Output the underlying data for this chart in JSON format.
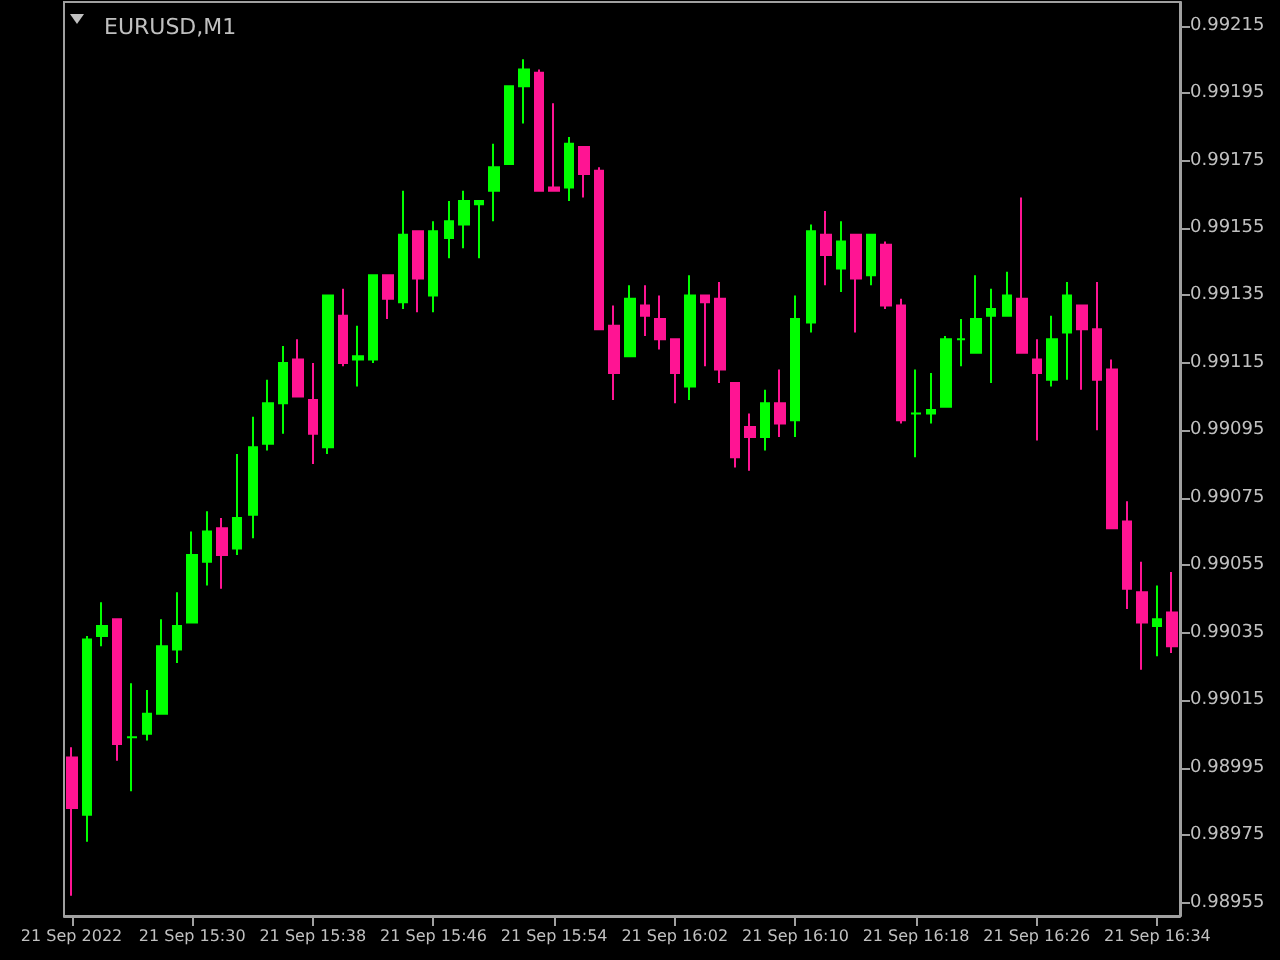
{
  "chart_data": {
    "type": "candlestick",
    "title": "EURUSD,M1",
    "categories": [
      "21 Sep 2022",
      null,
      null,
      null,
      null,
      null,
      null,
      null,
      "21 Sep 15:30",
      null,
      null,
      null,
      null,
      null,
      null,
      null,
      "21 Sep 15:38",
      null,
      null,
      null,
      null,
      null,
      null,
      null,
      "21 Sep 15:46",
      null,
      null,
      null,
      null,
      null,
      null,
      null,
      "21 Sep 15:54",
      null,
      null,
      null,
      null,
      null,
      null,
      null,
      "21 Sep 16:02",
      null,
      null,
      null,
      null,
      null,
      null,
      null,
      "21 Sep 16:10",
      null,
      null,
      null,
      null,
      null,
      null,
      null,
      "21 Sep 16:18",
      null,
      null,
      null,
      null,
      null,
      null,
      null,
      "21 Sep 16:26",
      null,
      null,
      null,
      null,
      null,
      null,
      null,
      "21 Sep 16:34",
      null
    ],
    "ohlc": [
      [
        0.98998,
        0.99001,
        0.98957,
        0.98983
      ],
      [
        0.98981,
        0.99034,
        0.98973,
        0.99033
      ],
      [
        0.99034,
        0.99044,
        0.99031,
        0.99037
      ],
      [
        0.99039,
        0.99039,
        0.98997,
        0.99002
      ],
      [
        0.99004,
        0.9902,
        0.98988,
        0.99004
      ],
      [
        0.99005,
        0.99018,
        0.99003,
        0.99011
      ],
      [
        0.99011,
        0.99039,
        0.99011,
        0.99031
      ],
      [
        0.9903,
        0.99047,
        0.99026,
        0.99037
      ],
      [
        0.99038,
        0.99065,
        0.99038,
        0.99058
      ],
      [
        0.99056,
        0.99071,
        0.99049,
        0.99065
      ],
      [
        0.99066,
        0.99069,
        0.99048,
        0.99058
      ],
      [
        0.9906,
        0.99088,
        0.99058,
        0.99069
      ],
      [
        0.9907,
        0.99099,
        0.99063,
        0.9909
      ],
      [
        0.99091,
        0.9911,
        0.99089,
        0.99103
      ],
      [
        0.99103,
        0.9912,
        0.99094,
        0.99115
      ],
      [
        0.99116,
        0.99122,
        0.99105,
        0.99105
      ],
      [
        0.99104,
        0.99115,
        0.99085,
        0.99094
      ],
      [
        0.9909,
        0.99135,
        0.99088,
        0.99135
      ],
      [
        0.99129,
        0.99137,
        0.99114,
        0.99115
      ],
      [
        0.99116,
        0.99126,
        0.99108,
        0.99117
      ],
      [
        0.99116,
        0.99141,
        0.99115,
        0.99141
      ],
      [
        0.99141,
        0.99141,
        0.99128,
        0.99134
      ],
      [
        0.99133,
        0.99166,
        0.99131,
        0.99153
      ],
      [
        0.99154,
        0.99154,
        0.9913,
        0.9914
      ],
      [
        0.99135,
        0.99157,
        0.9913,
        0.99154
      ],
      [
        0.99152,
        0.99163,
        0.99146,
        0.99157
      ],
      [
        0.99156,
        0.99166,
        0.99149,
        0.99163
      ],
      [
        0.99162,
        0.99163,
        0.99146,
        0.99163
      ],
      [
        0.99166,
        0.9918,
        0.99157,
        0.99173
      ],
      [
        0.99174,
        0.99197,
        0.99174,
        0.99197
      ],
      [
        0.99197,
        0.99205,
        0.99186,
        0.99202
      ],
      [
        0.99201,
        0.99202,
        0.99166,
        0.99166
      ],
      [
        0.99167,
        0.99192,
        0.99166,
        0.99166
      ],
      [
        0.99167,
        0.99182,
        0.99163,
        0.9918
      ],
      [
        0.99179,
        0.99179,
        0.99164,
        0.99171
      ],
      [
        0.99172,
        0.99173,
        0.99125,
        0.99125
      ],
      [
        0.99126,
        0.99132,
        0.99104,
        0.99112
      ],
      [
        0.99117,
        0.99138,
        0.99117,
        0.99134
      ],
      [
        0.99132,
        0.99138,
        0.99123,
        0.99129
      ],
      [
        0.99128,
        0.99135,
        0.99119,
        0.99122
      ],
      [
        0.99122,
        0.99122,
        0.99103,
        0.99112
      ],
      [
        0.99108,
        0.99141,
        0.99104,
        0.99135
      ],
      [
        0.99135,
        0.99135,
        0.99114,
        0.99133
      ],
      [
        0.99134,
        0.99139,
        0.99109,
        0.99113
      ],
      [
        0.99109,
        0.99109,
        0.99084,
        0.99087
      ],
      [
        0.99096,
        0.991,
        0.99083,
        0.99093
      ],
      [
        0.99093,
        0.99107,
        0.99089,
        0.99103
      ],
      [
        0.99103,
        0.99113,
        0.99093,
        0.99097
      ],
      [
        0.99098,
        0.99135,
        0.99093,
        0.99128
      ],
      [
        0.99127,
        0.99156,
        0.99124,
        0.99154
      ],
      [
        0.99153,
        0.9916,
        0.99138,
        0.99147
      ],
      [
        0.99143,
        0.99157,
        0.99136,
        0.99151
      ],
      [
        0.99153,
        0.99153,
        0.99124,
        0.9914
      ],
      [
        0.99141,
        0.99153,
        0.99138,
        0.99153
      ],
      [
        0.9915,
        0.99151,
        0.99131,
        0.99132
      ],
      [
        0.99132,
        0.99134,
        0.99097,
        0.99098
      ],
      [
        0.991,
        0.99113,
        0.99087,
        0.991
      ],
      [
        0.991,
        0.99112,
        0.99097,
        0.99101
      ],
      [
        0.99102,
        0.99123,
        0.99102,
        0.99122
      ],
      [
        0.99122,
        0.99128,
        0.99114,
        0.99122
      ],
      [
        0.99118,
        0.99141,
        0.99118,
        0.99128
      ],
      [
        0.99129,
        0.99137,
        0.99109,
        0.99131
      ],
      [
        0.99129,
        0.99142,
        0.99129,
        0.99135
      ],
      [
        0.99134,
        0.99164,
        0.99118,
        0.99118
      ],
      [
        0.99116,
        0.99122,
        0.99092,
        0.99112
      ],
      [
        0.9911,
        0.99129,
        0.99108,
        0.99122
      ],
      [
        0.99124,
        0.99139,
        0.9911,
        0.99135
      ],
      [
        0.99132,
        0.99132,
        0.99107,
        0.99125
      ],
      [
        0.99125,
        0.99139,
        0.99095,
        0.9911
      ],
      [
        0.99113,
        0.99116,
        0.99066,
        0.99066
      ],
      [
        0.99068,
        0.99074,
        0.99042,
        0.99048
      ],
      [
        0.99047,
        0.99056,
        0.99024,
        0.99038
      ],
      [
        0.99037,
        0.99049,
        0.99028,
        0.99039
      ],
      [
        0.99041,
        0.99053,
        0.99029,
        0.99031
      ]
    ],
    "colors": [
      "#ff1493",
      "#00ff00",
      "#00ff00",
      "#ff1493",
      "#00ff00",
      "#00ff00",
      "#00ff00",
      "#00ff00",
      "#00ff00",
      "#00ff00",
      "#ff1493",
      "#00ff00",
      "#00ff00",
      "#00ff00",
      "#00ff00",
      "#ff1493",
      "#ff1493",
      "#00ff00",
      "#ff1493",
      "#00ff00",
      "#00ff00",
      "#ff1493",
      "#00ff00",
      "#ff1493",
      "#00ff00",
      "#00ff00",
      "#00ff00",
      "#00ff00",
      "#00ff00",
      "#00ff00",
      "#00ff00",
      "#ff1493",
      "#ff1493",
      "#00ff00",
      "#ff1493",
      "#ff1493",
      "#ff1493",
      "#00ff00",
      "#ff1493",
      "#ff1493",
      "#ff1493",
      "#00ff00",
      "#ff1493",
      "#ff1493",
      "#ff1493",
      "#ff1493",
      "#00ff00",
      "#ff1493",
      "#00ff00",
      "#00ff00",
      "#ff1493",
      "#00ff00",
      "#ff1493",
      "#00ff00",
      "#ff1493",
      "#ff1493",
      "#00ff00",
      "#00ff00",
      "#00ff00",
      "#00ff00",
      "#00ff00",
      "#00ff00",
      "#00ff00",
      "#ff1493",
      "#ff1493",
      "#00ff00",
      "#00ff00",
      "#ff1493",
      "#ff1493",
      "#ff1493",
      "#ff1493",
      "#ff1493",
      "#00ff00",
      "#ff1493"
    ],
    "ylim": [
      0.98951,
      0.99222
    ],
    "yticks": [
      0.98955,
      0.98975,
      0.98995,
      0.99015,
      0.99035,
      0.99055,
      0.99075,
      0.99095,
      0.99115,
      0.99135,
      0.99155,
      0.99175,
      0.99195,
      0.99215
    ]
  }
}
